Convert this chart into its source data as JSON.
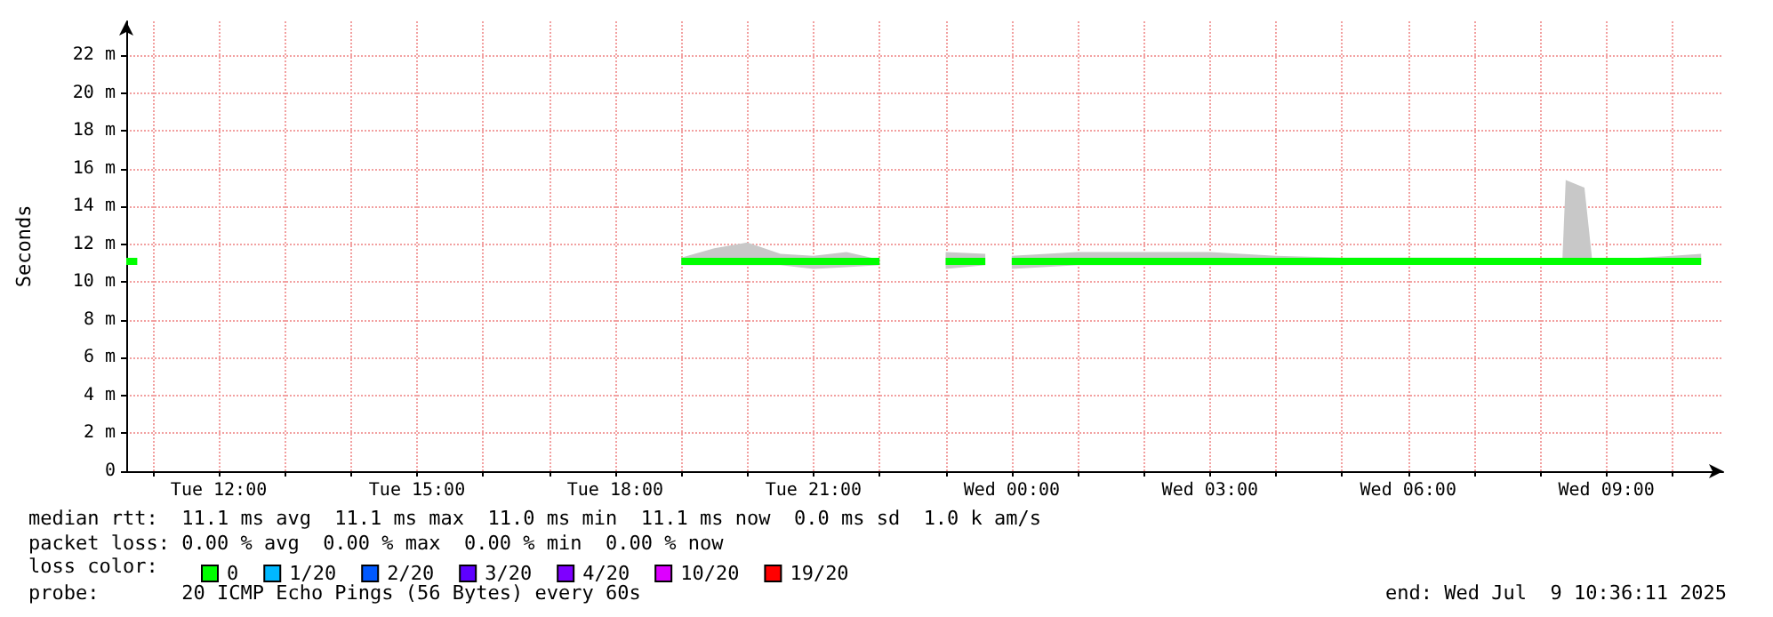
{
  "chart_data": {
    "type": "line",
    "ylabel": "Seconds",
    "xlim": [
      "2025-07-08T10:36",
      "2025-07-09T10:46"
    ],
    "xticks": [
      {
        "value": "2025-07-08T11:00",
        "label": null
      },
      {
        "value": "2025-07-08T12:00",
        "label": "Tue 12:00"
      },
      {
        "value": "2025-07-08T13:00",
        "label": null
      },
      {
        "value": "2025-07-08T14:00",
        "label": null
      },
      {
        "value": "2025-07-08T15:00",
        "label": "Tue 15:00"
      },
      {
        "value": "2025-07-08T16:00",
        "label": null
      },
      {
        "value": "2025-07-08T17:00",
        "label": null
      },
      {
        "value": "2025-07-08T18:00",
        "label": "Tue 18:00"
      },
      {
        "value": "2025-07-08T19:00",
        "label": null
      },
      {
        "value": "2025-07-08T20:00",
        "label": null
      },
      {
        "value": "2025-07-08T21:00",
        "label": "Tue 21:00"
      },
      {
        "value": "2025-07-08T22:00",
        "label": null
      },
      {
        "value": "2025-07-08T23:00",
        "label": null
      },
      {
        "value": "2025-07-09T00:00",
        "label": "Wed 00:00"
      },
      {
        "value": "2025-07-09T01:00",
        "label": null
      },
      {
        "value": "2025-07-09T02:00",
        "label": null
      },
      {
        "value": "2025-07-09T03:00",
        "label": "Wed 03:00"
      },
      {
        "value": "2025-07-09T04:00",
        "label": null
      },
      {
        "value": "2025-07-09T05:00",
        "label": null
      },
      {
        "value": "2025-07-09T06:00",
        "label": "Wed 06:00"
      },
      {
        "value": "2025-07-09T07:00",
        "label": null
      },
      {
        "value": "2025-07-09T08:00",
        "label": null
      },
      {
        "value": "2025-07-09T09:00",
        "label": "Wed 09:00"
      },
      {
        "value": "2025-07-09T10:00",
        "label": null
      }
    ],
    "ylim": [
      0,
      23.8
    ],
    "yticks": [
      0,
      {
        "value": 2,
        "label": "2 m"
      },
      {
        "value": 4,
        "label": "4 m"
      },
      {
        "value": 6,
        "label": "6 m"
      },
      {
        "value": 8,
        "label": "8 m"
      },
      {
        "value": 10,
        "label": "10 m"
      },
      {
        "value": 12,
        "label": "12 m"
      },
      {
        "value": 14,
        "label": "14 m"
      },
      {
        "value": 16,
        "label": "16 m"
      },
      {
        "value": 18,
        "label": "18 m"
      },
      {
        "value": 20,
        "label": "20 m"
      },
      {
        "value": 22,
        "label": "22 m"
      }
    ],
    "grid": true,
    "legend": "bottom left",
    "legend_title": "loss color:",
    "marker": "none",
    "line_style": "solid",
    "series": [
      {
        "name": "0",
        "color": "#00ff00",
        "x": [
          "2025-07-08T10:36",
          "2025-07-08T10:46",
          "2025-07-08T10:50",
          "2025-07-08T19:00",
          "2025-07-08T19:30",
          "2025-07-08T20:00",
          "2025-07-08T20:30",
          "2025-07-08T21:00",
          "2025-07-08T21:30",
          "2025-07-08T22:00",
          "2025-07-08T22:30",
          "2025-07-08T23:00",
          "2025-07-08T23:36",
          "2025-07-08T23:48",
          "2025-07-09T00:00",
          "2025-07-09T01:00",
          "2025-07-09T02:00",
          "2025-07-09T03:00",
          "2025-07-09T04:00",
          "2025-07-09T05:00",
          "2025-07-09T06:00",
          "2025-07-09T07:00",
          "2025-07-09T08:00",
          "2025-07-09T08:20",
          "2025-07-09T08:23",
          "2025-07-09T08:40",
          "2025-07-09T08:47",
          "2025-07-09T09:00",
          "2025-07-09T10:00",
          "2025-07-09T10:26"
        ],
        "values": [
          11.1,
          11.1,
          null,
          11.1,
          11.1,
          11.1,
          11.1,
          11.1,
          11.1,
          11.1,
          null,
          11.1,
          11.1,
          null,
          11.1,
          11.1,
          11.1,
          11.1,
          11.1,
          11.1,
          11.1,
          11.1,
          11.1,
          11.1,
          11.1,
          11.1,
          11.1,
          11.1,
          11.1,
          11.1
        ],
        "lower": [
          null,
          null,
          null,
          10.9,
          10.9,
          10.9,
          10.9,
          10.7,
          10.8,
          10.9,
          null,
          10.7,
          10.9,
          null,
          10.7,
          10.9,
          10.9,
          10.9,
          10.9,
          10.9,
          11.0,
          11.0,
          11.0,
          11.0,
          11.0,
          11.0,
          11.0,
          11.0,
          11.0,
          11.0
        ],
        "upper": [
          null,
          null,
          null,
          11.3,
          11.8,
          12.1,
          11.5,
          11.4,
          11.6,
          11.2,
          null,
          11.6,
          11.5,
          null,
          11.4,
          11.6,
          11.6,
          11.6,
          11.4,
          11.3,
          11.3,
          11.3,
          11.2,
          11.2,
          15.4,
          15.0,
          11.2,
          11.2,
          11.4,
          11.5
        ]
      },
      {
        "name": "1/20",
        "color": "#00b8ff"
      },
      {
        "name": "2/20",
        "color": "#0059ff"
      },
      {
        "name": "3/20",
        "color": "#5e00ff"
      },
      {
        "name": "4/20",
        "color": "#7e00ff"
      },
      {
        "name": "10/20",
        "color": "#dd00ff"
      },
      {
        "name": "19/20",
        "color": "#ff0000"
      }
    ],
    "annotations": [
      "median rtt:  11.1 ms avg  11.1 ms max  11.0 ms min  11.1 ms now  0.0 ms sd  1.0 k am/s",
      "packet loss: 0.00 % avg  0.00 % max  0.00 % min  0.00 % now",
      "probe:       20 ICMP Echo Pings (56 Bytes) every 60s",
      "end: Wed Jul  9 10:36:11 2025"
    ]
  }
}
